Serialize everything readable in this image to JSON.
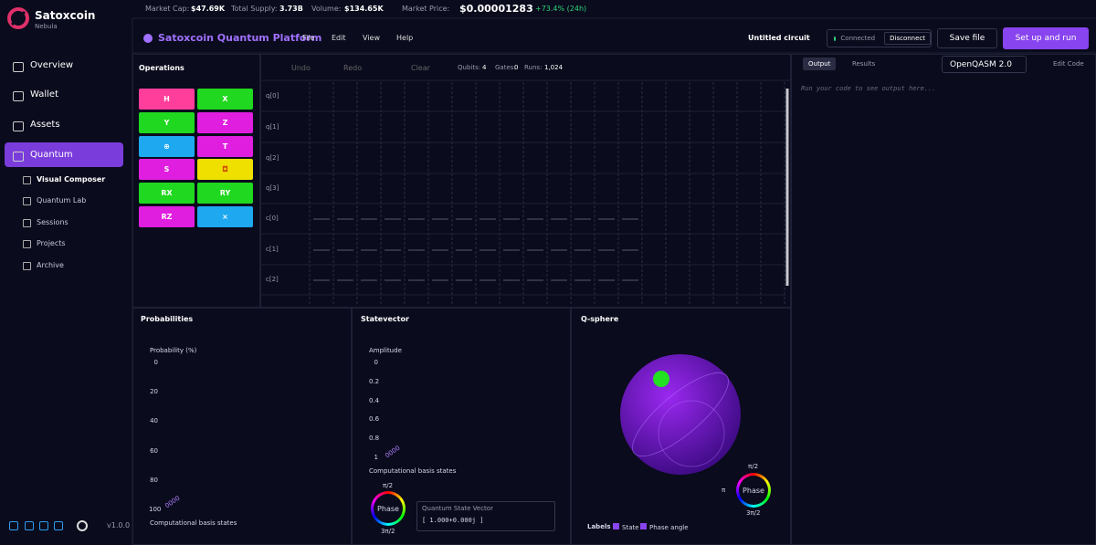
{
  "sidebar": {
    "brand": "Satoxcoin",
    "subtitle": "Nebula",
    "nav": [
      "Overview",
      "Wallet",
      "Assets",
      "Quantum"
    ],
    "subnav": [
      "Visual Composer",
      "Quantum Lab",
      "Sessions",
      "Projects",
      "Archive"
    ],
    "version": "v1.0.0"
  },
  "topbar": {
    "stats": [
      {
        "label": "Market Cap:",
        "value": "$47.69K"
      },
      {
        "label": "Total Supply:",
        "value": "3.73B"
      },
      {
        "label": "Volume:",
        "value": "$134.65K"
      },
      {
        "label": "Market Price:",
        "value": "$0.00001283"
      }
    ],
    "change": "+73.4% (24h)"
  },
  "header": {
    "title": "Satoxcoin Quantum Platform",
    "menu": [
      "File",
      "Edit",
      "View",
      "Help"
    ],
    "circuit_name": "Untitled circuit",
    "status": "Connected",
    "disconnect": "Disconnect",
    "save": "Save file",
    "run": "Set up and run"
  },
  "operations": {
    "title": "Operations",
    "gates": [
      {
        "label": "H",
        "color": "#ff3d9a"
      },
      {
        "label": "X",
        "color": "#1fd81f"
      },
      {
        "label": "Y",
        "color": "#1fd81f"
      },
      {
        "label": "Z",
        "color": "#e01ee0"
      },
      {
        "label": "⊕",
        "color": "#1ea8f0"
      },
      {
        "label": "T",
        "color": "#e01ee0"
      },
      {
        "label": "S",
        "color": "#e01ee0"
      },
      {
        "label": "◘",
        "color": "#f0e000"
      },
      {
        "label": "RX",
        "color": "#1fd81f"
      },
      {
        "label": "RY",
        "color": "#1fd81f"
      },
      {
        "label": "RZ",
        "color": "#e01ee0"
      },
      {
        "label": "×",
        "color": "#1ea8f0"
      }
    ]
  },
  "toolbar": {
    "undo": "Undo",
    "redo": "Redo",
    "clear": "Clear",
    "qubits_label": "Qubits:",
    "qubits": 4,
    "gates_label": "Gates:",
    "gates": 0,
    "runs_label": "Runs:",
    "runs": "1,024"
  },
  "circuit": {
    "wires": [
      "q[0]",
      "q[1]",
      "q[2]",
      "q[3]",
      "c[0]",
      "c[1]",
      "c[2]"
    ]
  },
  "output": {
    "tabs": [
      "Output",
      "Results"
    ],
    "language": "OpenQASM 2.0",
    "edit_code": "Edit Code",
    "placeholder": "Run your code to see output here..."
  },
  "probabilities": {
    "title": "Probabilities",
    "y_label": "Probability (%)",
    "yticks": [
      0,
      20,
      40,
      60,
      80,
      100
    ],
    "state": "0000",
    "x_label": "Computational basis states"
  },
  "statevector": {
    "title": "Statevector",
    "y_label": "Amplitude",
    "yticks": [
      0,
      0.2,
      0.4,
      0.6,
      0.8,
      1
    ],
    "state": "0000",
    "x_label": "Computational basis states",
    "phase_top": "π/2",
    "phase": "Phase",
    "phase_bottom": "3π/2",
    "vector_title": "Quantum State Vector",
    "vector": "[ 1.000+0.000j ]"
  },
  "qsphere": {
    "title": "Q-sphere",
    "phase_top": "π/2",
    "phase_left": "π",
    "phase": "Phase",
    "phase_bottom": "3π/2",
    "labels": "Labels",
    "state": "State",
    "phase_angle": "Phase angle"
  }
}
